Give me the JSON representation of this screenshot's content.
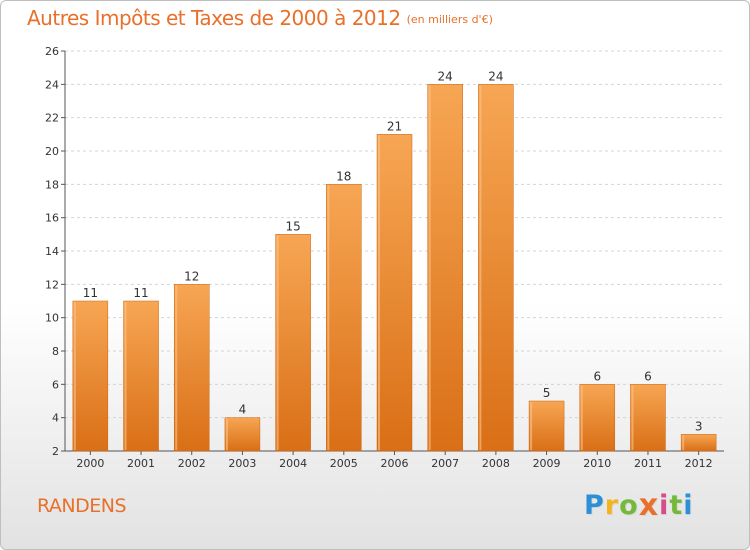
{
  "title": "Autres Impôts et Taxes de 2000 à 2012",
  "unit_note": "(en milliers d'€)",
  "place": "RANDENS",
  "logo": {
    "letters": [
      "P",
      "r",
      "o",
      "x",
      "i",
      "t",
      "i"
    ],
    "colors": [
      "#2d8fd6",
      "#f2b51e",
      "#74b83c",
      "#e8702a",
      "#d84a8a",
      "#74b83c",
      "#2d8fd6"
    ]
  },
  "colors": {
    "bar_top": "#f7a654",
    "bar_bottom": "#d96f16",
    "accent": "#e8702a"
  },
  "chart_data": {
    "type": "bar",
    "categories": [
      "2000",
      "2001",
      "2002",
      "2003",
      "2004",
      "2005",
      "2006",
      "2007",
      "2008",
      "2009",
      "2010",
      "2011",
      "2012"
    ],
    "values": [
      11,
      11,
      12,
      4,
      15,
      18,
      21,
      24,
      24,
      5,
      6,
      6,
      3
    ],
    "data_labels": [
      "11",
      "11",
      "12",
      "4",
      "15",
      "18",
      "21",
      "24",
      "24",
      "5",
      "6",
      "6",
      "3"
    ],
    "ylim": [
      2,
      26
    ],
    "yticks": [
      2,
      4,
      6,
      8,
      10,
      12,
      14,
      16,
      18,
      20,
      22,
      24,
      26
    ],
    "xlabel": "",
    "ylabel": "",
    "grid": true,
    "legend": "none"
  }
}
